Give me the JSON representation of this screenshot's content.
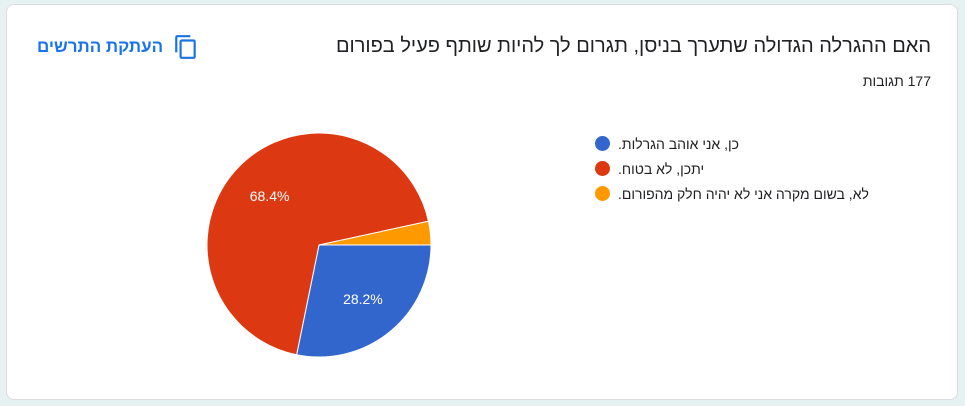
{
  "question": {
    "title": "האם ההגרלה הגדולה שתערך בניסן, תגרום לך להיות שותף פעיל בפורום",
    "responses": "177 תגובות"
  },
  "toolbar": {
    "copy_label": "העתקת התרשים",
    "copy_icon": "copy-icon"
  },
  "chart_data": {
    "type": "pie",
    "slices": [
      {
        "label": "כן, אני אוהב הגרלות.",
        "value": 28.2,
        "display": "28.2%",
        "color": "#3366cc"
      },
      {
        "label": "יתכן, לא בטוח.",
        "value": 68.4,
        "display": "68.4%",
        "color": "#dc3912"
      },
      {
        "label": "לא, בשום מקרה אני לא יהיה חלק מהפורום.",
        "value": 3.4,
        "display": "",
        "color": "#ff9900"
      }
    ],
    "legend_position": "right"
  }
}
